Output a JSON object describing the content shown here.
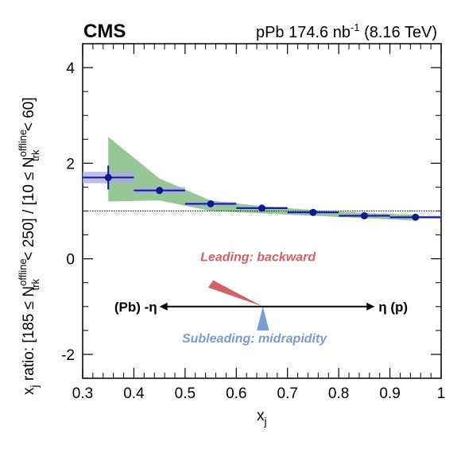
{
  "chart_data": {
    "type": "scatter",
    "title_left": "CMS",
    "title_right_prefix": "pPb 174.6 nb",
    "title_right_sup": "-1",
    "title_right_suffix": " (8.16 TeV)",
    "xlabel_main": "x",
    "xlabel_sub": "j",
    "ylabel_pre": "x",
    "ylabel_sub_j": "j",
    "ylabel_a": " ratio: [185 ≤ N",
    "ylabel_sup": "offline",
    "ylabel_sub": "trk",
    "ylabel_b": " < 250] / [10 ≤ N",
    "ylabel_c": " < 60]",
    "xlim": [
      0.3,
      1.0
    ],
    "ylim": [
      -2.5,
      4.5
    ],
    "xticks": [
      "0.3",
      "0.4",
      "0.5",
      "0.6",
      "0.7",
      "0.8",
      "0.9",
      "1"
    ],
    "yticks": [
      "-2",
      "0",
      "2",
      "4"
    ],
    "xtick_values": [
      0.3,
      0.4,
      0.5,
      0.6,
      0.7,
      0.8,
      0.9,
      1.0
    ],
    "ytick_values": [
      -2,
      0,
      2,
      4
    ],
    "reference_line": 1.0,
    "colors": {
      "data": "#0c1a8c",
      "syst_box": "#a9a9e6",
      "model_band": "#8cc08c",
      "leading": "#d06266",
      "subleading": "#7b9bd2"
    },
    "points": [
      {
        "x": 0.35,
        "x_lo": 0.3,
        "x_hi": 0.4,
        "y": 1.7,
        "stat": 0.25,
        "syst": 0.12
      },
      {
        "x": 0.45,
        "x_lo": 0.4,
        "x_hi": 0.5,
        "y": 1.43,
        "stat": 0.06,
        "syst": 0.07
      },
      {
        "x": 0.55,
        "x_lo": 0.5,
        "x_hi": 0.6,
        "y": 1.15,
        "stat": 0.03,
        "syst": 0.04
      },
      {
        "x": 0.65,
        "x_lo": 0.6,
        "x_hi": 0.7,
        "y": 1.06,
        "stat": 0.03,
        "syst": 0.03
      },
      {
        "x": 0.75,
        "x_lo": 0.7,
        "x_hi": 0.8,
        "y": 0.97,
        "stat": 0.03,
        "syst": 0.03
      },
      {
        "x": 0.85,
        "x_lo": 0.8,
        "x_hi": 0.9,
        "y": 0.9,
        "stat": 0.03,
        "syst": 0.03
      },
      {
        "x": 0.95,
        "x_lo": 0.9,
        "x_hi": 1.0,
        "y": 0.87,
        "stat": 0.06,
        "syst": 0.03
      }
    ],
    "model_band": {
      "x": [
        0.35,
        0.45,
        0.55,
        0.65,
        0.75,
        0.85,
        0.95
      ],
      "lo": [
        1.2,
        1.22,
        1.0,
        0.95,
        0.9,
        0.85,
        0.8
      ],
      "hi": [
        2.55,
        1.68,
        1.22,
        1.1,
        1.02,
        0.96,
        0.92
      ]
    },
    "annotations": {
      "leading_label": "Leading: backward",
      "subleading_label": "Subleading: midrapidity",
      "eta_left": "(Pb) -η",
      "eta_right": "η (p)",
      "pivot": {
        "x": 0.652,
        "y": -1.0
      },
      "arrow_x": [
        0.45,
        0.87
      ],
      "leading_wedge_tip": [
        0.555,
        -0.45
      ],
      "leading_wedge_base": [
        0.545,
        -0.6
      ],
      "subleading_half_width": 0.012,
      "subleading_depth": 0.5
    }
  }
}
